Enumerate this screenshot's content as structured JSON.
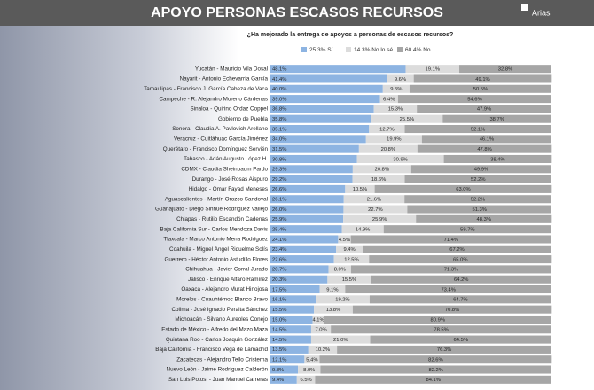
{
  "chart_data": {
    "type": "stacked-bar-horizontal",
    "title": "APOYO PERSONAS ESCASOS RECURSOS",
    "subtitle": "¿Ha mejorado la entrega de apoyos a personas de escasos recursos?",
    "logo": "Arias",
    "xlim": [
      0,
      100
    ],
    "categories": [
      "Yucatán - Mauricio Vila Dosal",
      "Nayarit - Antonio Echevarría García",
      "Tamaulipas - Francisco J. García Cabeza de Vaca",
      "Campeche - R. Alejandro Moreno Cárdenas",
      "Sinaloa - Quirino Ordaz Coppel",
      "Gobierno de Puebla",
      "Sonora - Claudia A. Pavlovich Arellano",
      "Veracruz - Cuitláhuac García Jiménez",
      "Querétaro - Francisco Domínguez Servién",
      "Tabasco - Adán Augusto López H.",
      "CDMX - Claudia Sheinbaum Pardo",
      "Durango - José Rosas Aispuro",
      "Hidalgo - Omar Fayad Meneses",
      "Aguascalientes - Martín Orozco Sandoval",
      "Guanajuato - Diego Sinhué Rodríguez Vallejo",
      "Chiapas - Rutilio Escandón Cadenas",
      "Baja California Sur - Carlos Mendoza Davis",
      "Tlaxcala - Marco Antonio Mena Rodríguez",
      "Coahuila - Miguel Ángel Riquelme Solís",
      "Guerrero - Héctor Antonio Astudillo Flores",
      "Chihuahua - Javier Corral Jurado",
      "Jalisco - Enrique Alfaro Ramírez",
      "Oaxaca - Alejandro Murat Hinojosa",
      "Morelos - Cuauhtémoc Blanco Bravo",
      "Colima - José Ignacio Peralta Sánchez",
      "Michoacán - Silvano Aureoles Conejo",
      "Estado de México - Alfredo del Mazo Maza",
      "Quintana Roo - Carlos Joaquín González",
      "Baja California - Francisco Vega de Lamadrid",
      "Zacatecas - Alejandro Tello Cristerna",
      "Nuevo León - Jaime Rodríguez Calderón",
      "San Luis Potosí - Juan Manuel Carreras"
    ],
    "series": [
      {
        "name": "25.3% Sí",
        "color": "#8db4e2",
        "values": [
          48.1,
          41.4,
          40.0,
          39.0,
          36.8,
          35.8,
          35.1,
          34.0,
          31.5,
          30.8,
          29.3,
          29.2,
          26.6,
          26.1,
          26.0,
          25.9,
          25.4,
          24.1,
          23.4,
          22.6,
          20.7,
          20.3,
          17.5,
          16.1,
          15.5,
          15.0,
          14.5,
          14.5,
          13.5,
          12.1,
          9.8,
          9.4
        ],
        "value_labels": [
          "48.1%",
          "41.4%",
          "40.0%",
          "39.0%",
          "36.8%",
          "35.8%",
          "35.1%",
          "34.0%",
          "31.5%",
          "30.8%",
          "29.3%",
          "29.2%",
          "26.6%",
          "26.1%",
          "26.0%",
          "25.9%",
          "25.4%",
          "24.1%",
          "23.4%",
          "22.6%",
          "20.7%",
          "20.3%",
          "17.5%",
          "16.1%",
          "15.5%",
          "15.0%",
          "14.5%",
          "14.5%",
          "13.5%",
          "12.1%",
          "9.8%",
          "9.4%"
        ]
      },
      {
        "name": "14.3% No lo sé",
        "color": "#dcdcdc",
        "values": [
          19.1,
          9.6,
          9.5,
          6.4,
          15.3,
          25.5,
          12.7,
          19.9,
          20.8,
          30.9,
          20.8,
          18.6,
          10.5,
          21.6,
          22.7,
          25.9,
          14.9,
          4.5,
          9.4,
          12.5,
          8.0,
          15.5,
          9.1,
          19.2,
          13.8,
          4.1,
          7.0,
          21.0,
          10.2,
          5.4,
          8.0,
          6.5
        ],
        "value_labels": [
          "19.1%",
          "9.6%",
          "9.5%",
          "6.4%",
          "15.3%",
          "25.5%",
          "12.7%",
          "19.9%",
          "20.8%",
          "30.9%",
          "20.8%",
          "18.6%",
          "10.5%",
          "21.6%",
          "22.7%",
          "25.9%",
          "14.9%",
          "4.5%",
          "9.4%",
          "12.5%",
          "8.0%",
          "15.5%",
          "9.1%",
          "19.2%",
          "13.8%",
          "4.1%",
          "7.0%",
          "21.0%",
          "10.2%",
          "5.4%",
          "8.0%",
          "6.5%"
        ]
      },
      {
        "name": "60.4% No",
        "color": "#a6a6a6",
        "values": [
          32.8,
          49.1,
          50.5,
          54.6,
          47.9,
          38.7,
          52.1,
          46.1,
          47.8,
          38.4,
          49.9,
          52.2,
          63.0,
          52.2,
          51.3,
          48.3,
          59.7,
          71.4,
          67.2,
          65.0,
          71.3,
          64.2,
          73.4,
          64.7,
          70.8,
          80.9,
          78.5,
          64.5,
          76.3,
          82.6,
          82.2,
          84.1
        ],
        "value_labels": [
          "32.8%",
          "49.1%",
          "50.5%",
          "54.6%",
          "47.9%",
          "38.7%",
          "52.1%",
          "46.1%",
          "47.8%",
          "38.4%",
          "49.9%",
          "52.2%",
          "63.0%",
          "52.2%",
          "51.3%",
          "48.3%",
          "59.7%",
          "71.4%",
          "67.2%",
          "65.0%",
          "71.3%",
          "64.2%",
          "73.4%",
          "64.7%",
          "70.8%",
          "80.9%",
          "78.5%",
          "64.5%",
          "76.3%",
          "82.6%",
          "82.2%",
          "84.1%"
        ]
      }
    ]
  }
}
